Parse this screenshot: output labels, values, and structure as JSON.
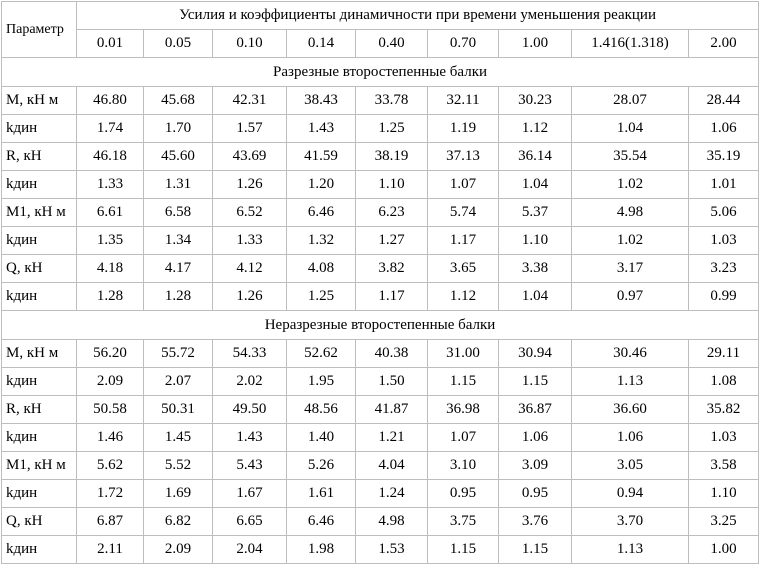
{
  "table": {
    "param_header": "Параметр",
    "title": "Усилия и коэффициенты динамичности при времени уменьшения реакции",
    "times": [
      "0.01",
      "0.05",
      "0.10",
      "0.14",
      "0.40",
      "0.70",
      "1.00",
      "1.416(1.318)",
      "2.00"
    ],
    "sections": [
      {
        "title": "Разрезные второстепенные балки",
        "rows": [
          {
            "param": "M, кН м",
            "values": [
              "46.80",
              "45.68",
              "42.31",
              "38.43",
              "33.78",
              "32.11",
              "30.23",
              "28.07",
              "28.44"
            ]
          },
          {
            "param": "kдин",
            "values": [
              "1.74",
              "1.70",
              "1.57",
              "1.43",
              "1.25",
              "1.19",
              "1.12",
              "1.04",
              "1.06"
            ]
          },
          {
            "param": "R, кН",
            "values": [
              "46.18",
              "45.60",
              "43.69",
              "41.59",
              "38.19",
              "37.13",
              "36.14",
              "35.54",
              "35.19"
            ]
          },
          {
            "param": "kдин",
            "values": [
              "1.33",
              "1.31",
              "1.26",
              "1.20",
              "1.10",
              "1.07",
              "1.04",
              "1.02",
              "1.01"
            ]
          },
          {
            "param": "M1, кН м",
            "values": [
              "6.61",
              "6.58",
              "6.52",
              "6.46",
              "6.23",
              "5.74",
              "5.37",
              "4.98",
              "5.06"
            ]
          },
          {
            "param": "kдин",
            "values": [
              "1.35",
              "1.34",
              "1.33",
              "1.32",
              "1.27",
              "1.17",
              "1.10",
              "1.02",
              "1.03"
            ]
          },
          {
            "param": "Q, кН",
            "values": [
              "4.18",
              "4.17",
              "4.12",
              "4.08",
              "3.82",
              "3.65",
              "3.38",
              "3.17",
              "3.23"
            ]
          },
          {
            "param": "kдин",
            "values": [
              "1.28",
              "1.28",
              "1.26",
              "1.25",
              "1.17",
              "1.12",
              "1.04",
              "0.97",
              "0.99"
            ]
          }
        ]
      },
      {
        "title": "Неразрезные второстепенные балки",
        "rows": [
          {
            "param": "M, кН м",
            "values": [
              "56.20",
              "55.72",
              "54.33",
              "52.62",
              "40.38",
              "31.00",
              "30.94",
              "30.46",
              "29.11"
            ]
          },
          {
            "param": "kдин",
            "values": [
              "2.09",
              "2.07",
              "2.02",
              "1.95",
              "1.50",
              "1.15",
              "1.15",
              "1.13",
              "1.08"
            ]
          },
          {
            "param": "R, кН",
            "values": [
              "50.58",
              "50.31",
              "49.50",
              "48.56",
              "41.87",
              "36.98",
              "36.87",
              "36.60",
              "35.82"
            ]
          },
          {
            "param": "kдин",
            "values": [
              "1.46",
              "1.45",
              "1.43",
              "1.40",
              "1.21",
              "1.07",
              "1.06",
              "1.06",
              "1.03"
            ]
          },
          {
            "param": "M1, кН м",
            "values": [
              "5.62",
              "5.52",
              "5.43",
              "5.26",
              "4.04",
              "3.10",
              "3.09",
              "3.05",
              "3.58"
            ]
          },
          {
            "param": "kдин",
            "values": [
              "1.72",
              "1.69",
              "1.67",
              "1.61",
              "1.24",
              "0.95",
              "0.95",
              "0.94",
              "1.10"
            ]
          },
          {
            "param": "Q, кН",
            "values": [
              "6.87",
              "6.82",
              "6.65",
              "6.46",
              "4.98",
              "3.75",
              "3.76",
              "3.70",
              "3.25"
            ]
          },
          {
            "param": "kдин",
            "values": [
              "2.11",
              "2.09",
              "2.04",
              "1.98",
              "1.53",
              "1.15",
              "1.15",
              "1.13",
              "1.00"
            ]
          }
        ]
      }
    ]
  }
}
